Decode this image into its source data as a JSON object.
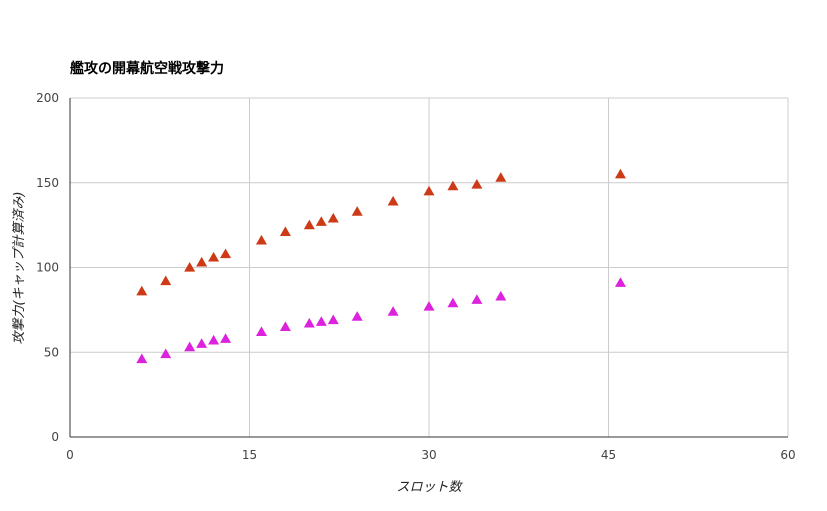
{
  "chart_data": {
    "type": "scatter",
    "title": "艦攻の開幕航空戦攻撃力",
    "xlabel": "スロット数",
    "ylabel": "攻撃力(キャップ計算済み)",
    "xlim": [
      0,
      60
    ],
    "ylim": [
      0,
      200
    ],
    "x_ticks": [
      "0",
      "15",
      "30",
      "45",
      "60"
    ],
    "y_ticks": [
      "0",
      "50",
      "100",
      "150",
      "200"
    ],
    "grid": true,
    "legend": "none",
    "series": [
      {
        "color": "#cc3a17",
        "marker": "triangle",
        "x": [
          6,
          8,
          10,
          11,
          12,
          13,
          16,
          18,
          20,
          21,
          22,
          24,
          27,
          30,
          32,
          34,
          36,
          46
        ],
        "y": [
          86,
          92,
          100,
          103,
          106,
          108,
          116,
          121,
          125,
          127,
          129,
          133,
          139,
          145,
          148,
          149,
          153,
          155
        ]
      },
      {
        "color": "#dd22dd",
        "marker": "triangle",
        "x": [
          6,
          8,
          10,
          11,
          12,
          13,
          16,
          18,
          20,
          21,
          22,
          24,
          27,
          30,
          32,
          34,
          36,
          46
        ],
        "y": [
          46,
          49,
          53,
          55,
          57,
          58,
          62,
          65,
          67,
          68,
          69,
          71,
          74,
          77,
          79,
          81,
          83,
          91
        ]
      }
    ]
  }
}
